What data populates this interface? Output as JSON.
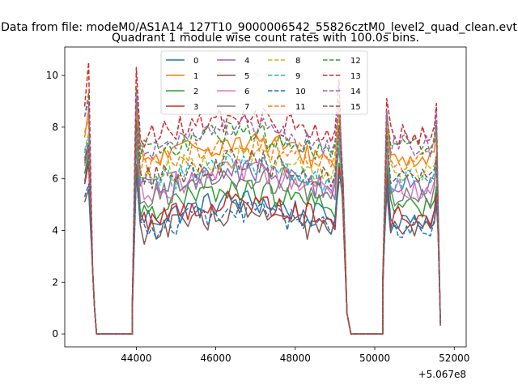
{
  "chart_data": {
    "type": "line",
    "suptitle": "Data from file: modeM0/AS1A14_127T10_9000006542_55826cztM0_level2_quad_clean.evt",
    "title": "Quadrant 1 module wise count rates with 100.0s bins.",
    "xlabel": "",
    "ylabel": "",
    "x_offset_label": "+5.067e8",
    "xlim": [
      42200,
      52300
    ],
    "ylim": [
      -0.5,
      11.1
    ],
    "x_ticks": [
      44000,
      46000,
      48000,
      50000,
      52000
    ],
    "x_tick_labels": [
      "44000",
      "46000",
      "48000",
      "50000",
      "52000"
    ],
    "y_ticks": [
      0,
      2,
      4,
      6,
      8,
      10
    ],
    "y_tick_labels": [
      "0",
      "2",
      "4",
      "6",
      "8",
      "10"
    ],
    "grid": false,
    "legend_location": "upper center",
    "segments": [
      {
        "start": 42700,
        "end": 43000,
        "rise": "peak"
      },
      {
        "start": 43000,
        "end": 43900,
        "rise": "zero"
      },
      {
        "start": 43900,
        "end": 49200,
        "rise": "plateau"
      },
      {
        "start": 49200,
        "end": 50200,
        "rise": "zero"
      },
      {
        "start": 50200,
        "end": 51650,
        "rise": "plateau"
      }
    ],
    "series": [
      {
        "name": "0",
        "color": "#1f77b4",
        "dash": "solid",
        "level": 4.8,
        "start": 5.9,
        "peak": 6.8
      },
      {
        "name": "1",
        "color": "#ff7f0e",
        "dash": "solid",
        "level": 7.1,
        "start": 7.6,
        "peak": 8.7
      },
      {
        "name": "2",
        "color": "#2ca02c",
        "dash": "solid",
        "level": 5.2,
        "start": 6.2,
        "peak": 7.0
      },
      {
        "name": "3",
        "color": "#d62728",
        "dash": "solid",
        "level": 4.8,
        "start": 5.8,
        "peak": 6.6
      },
      {
        "name": "4",
        "color": "#9467bd",
        "dash": "solid",
        "level": 6.0,
        "start": 6.8,
        "peak": 7.4
      },
      {
        "name": "5",
        "color": "#8c564b",
        "dash": "solid",
        "level": 4.3,
        "start": 5.1,
        "peak": 5.6
      },
      {
        "name": "6",
        "color": "#e377c2",
        "dash": "solid",
        "level": 5.9,
        "start": 6.5,
        "peak": 7.2
      },
      {
        "name": "7",
        "color": "#7f7f7f",
        "dash": "solid",
        "level": 5.7,
        "start": 6.6,
        "peak": 7.2
      },
      {
        "name": "8",
        "color": "#bcbd22",
        "dash": "dashed",
        "level": 6.5,
        "start": 7.1,
        "peak": 7.8
      },
      {
        "name": "9",
        "color": "#17becf",
        "dash": "dashed",
        "level": 6.2,
        "start": 7.0,
        "peak": 7.6
      },
      {
        "name": "10",
        "color": "#1f77b4",
        "dash": "dashed",
        "level": 4.4,
        "start": 5.3,
        "peak": 5.8
      },
      {
        "name": "11",
        "color": "#ff7f0e",
        "dash": "dashed",
        "level": 7.0,
        "start": 7.8,
        "peak": 8.3
      },
      {
        "name": "12",
        "color": "#2ca02c",
        "dash": "dashed",
        "level": 7.4,
        "start": 8.4,
        "peak": 9.3
      },
      {
        "name": "13",
        "color": "#d62728",
        "dash": "dashed",
        "level": 8.0,
        "start": 8.8,
        "peak": 10.5
      },
      {
        "name": "14",
        "color": "#9467bd",
        "dash": "dashed",
        "level": 7.6,
        "start": 8.4,
        "peak": 9.0
      },
      {
        "name": "15",
        "color": "#8c564b",
        "dash": "dashed",
        "level": 6.3,
        "start": 6.7,
        "peak": 7.3
      }
    ]
  }
}
